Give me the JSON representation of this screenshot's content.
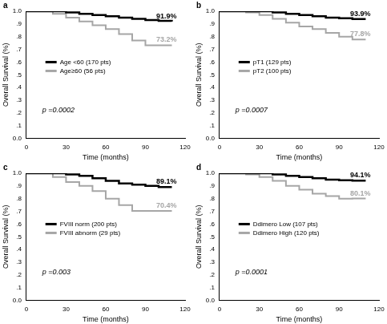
{
  "chart_data": [
    {
      "type": "line",
      "title": "a",
      "line_style": "step",
      "grid": false,
      "legend": "lower left",
      "x_label": "Time (months)",
      "y_label": "Overall Survival (%)",
      "x": [
        0,
        10,
        20,
        30,
        40,
        50,
        60,
        70,
        80,
        90,
        100,
        110
      ],
      "xlim": [
        0,
        120
      ],
      "xticks": [
        0,
        30,
        60,
        90,
        120
      ],
      "ylim": [
        0,
        1
      ],
      "yticks": [
        {
          "value": 0,
          "label": "0.0"
        },
        {
          "value": 0.1,
          "label": ".1"
        },
        {
          "value": 0.2,
          "label": ".2"
        },
        {
          "value": 0.3,
          "label": ".3"
        },
        {
          "value": 0.4,
          "label": ".4"
        },
        {
          "value": 0.5,
          "label": ".5"
        },
        {
          "value": 0.6,
          "label": ".6"
        },
        {
          "value": 0.7,
          "label": ".7"
        },
        {
          "value": 0.8,
          "label": ".8"
        },
        {
          "value": 0.9,
          "label": ".9"
        },
        {
          "value": 1,
          "label": "1.0"
        }
      ],
      "annotations": [
        "p =0.0002"
      ],
      "series": [
        {
          "name": "Age <60 (170 pts)",
          "color": "#000000",
          "end_label": "91.9%",
          "values": [
            1,
            1,
            1,
            0.99,
            0.98,
            0.97,
            0.96,
            0.95,
            0.94,
            0.93,
            0.925,
            0.919
          ]
        },
        {
          "name": "Age≥60 (56 pts)",
          "color": "#a6a6a6",
          "end_label": "73.2%",
          "values": [
            1,
            1,
            0.98,
            0.95,
            0.92,
            0.89,
            0.86,
            0.82,
            0.77,
            0.732,
            0.732,
            0.732
          ]
        }
      ]
    },
    {
      "type": "line",
      "title": "b",
      "line_style": "step",
      "grid": false,
      "legend": "lower left",
      "x_label": "Time (months)",
      "y_label": "Overall Survival (%)",
      "x": [
        0,
        10,
        20,
        30,
        40,
        50,
        60,
        70,
        80,
        90,
        100,
        110
      ],
      "xlim": [
        0,
        120
      ],
      "xticks": [
        0,
        30,
        60,
        90,
        120
      ],
      "ylim": [
        0,
        1
      ],
      "yticks": [
        {
          "value": 0,
          "label": "0.0"
        },
        {
          "value": 0.1,
          "label": ".1"
        },
        {
          "value": 0.2,
          "label": ".2"
        },
        {
          "value": 0.3,
          "label": ".3"
        },
        {
          "value": 0.4,
          "label": ".4"
        },
        {
          "value": 0.5,
          "label": ".5"
        },
        {
          "value": 0.6,
          "label": ".6"
        },
        {
          "value": 0.7,
          "label": ".7"
        },
        {
          "value": 0.8,
          "label": ".8"
        },
        {
          "value": 0.9,
          "label": ".9"
        },
        {
          "value": 1,
          "label": "1.0"
        }
      ],
      "annotations": [
        "p =0.0007"
      ],
      "series": [
        {
          "name": "pT1 (129 pts)",
          "color": "#000000",
          "end_label": "93.9%",
          "values": [
            1,
            1,
            1,
            1,
            0.99,
            0.98,
            0.97,
            0.96,
            0.95,
            0.945,
            0.939,
            0.939
          ]
        },
        {
          "name": "pT2 (100 pts)",
          "color": "#a6a6a6",
          "end_label": "77.8%",
          "values": [
            1,
            1,
            0.99,
            0.97,
            0.94,
            0.91,
            0.88,
            0.86,
            0.83,
            0.8,
            0.778,
            0.778
          ]
        }
      ]
    },
    {
      "type": "line",
      "title": "c",
      "line_style": "step",
      "grid": false,
      "legend": "lower left",
      "x_label": "Time (months)",
      "y_label": "Overall Survival (%)",
      "x": [
        0,
        10,
        20,
        30,
        40,
        50,
        60,
        70,
        80,
        90,
        100,
        110
      ],
      "xlim": [
        0,
        120
      ],
      "xticks": [
        0,
        30,
        60,
        90,
        120
      ],
      "ylim": [
        0,
        1
      ],
      "yticks": [
        {
          "value": 0,
          "label": "0.0"
        },
        {
          "value": 0.1,
          "label": ".1"
        },
        {
          "value": 0.2,
          "label": ".2"
        },
        {
          "value": 0.3,
          "label": ".3"
        },
        {
          "value": 0.4,
          "label": ".4"
        },
        {
          "value": 0.5,
          "label": ".5"
        },
        {
          "value": 0.6,
          "label": ".6"
        },
        {
          "value": 0.7,
          "label": ".7"
        },
        {
          "value": 0.8,
          "label": ".8"
        },
        {
          "value": 0.9,
          "label": ".9"
        },
        {
          "value": 1,
          "label": "1.0"
        }
      ],
      "annotations": [
        "p =0.003"
      ],
      "series": [
        {
          "name": "FVIII norm (200 pts)",
          "color": "#000000",
          "end_label": "89.1%",
          "values": [
            1,
            1,
            1,
            0.99,
            0.98,
            0.96,
            0.94,
            0.92,
            0.91,
            0.9,
            0.891,
            0.891
          ]
        },
        {
          "name": "FVIII abnorm (29 pts)",
          "color": "#a6a6a6",
          "end_label": "70.4%",
          "values": [
            1,
            1,
            0.97,
            0.93,
            0.9,
            0.86,
            0.8,
            0.75,
            0.704,
            0.704,
            0.704,
            0.704
          ]
        }
      ]
    },
    {
      "type": "line",
      "title": "d",
      "line_style": "step",
      "grid": false,
      "legend": "lower left",
      "x_label": "Time (months)",
      "y_label": "Overall Survival (%)",
      "x": [
        0,
        10,
        20,
        30,
        40,
        50,
        60,
        70,
        80,
        90,
        100,
        110
      ],
      "xlim": [
        0,
        120
      ],
      "xticks": [
        0,
        30,
        60,
        90,
        120
      ],
      "ylim": [
        0,
        1
      ],
      "yticks": [
        {
          "value": 0,
          "label": "0.0"
        },
        {
          "value": 0.1,
          "label": ".1"
        },
        {
          "value": 0.2,
          "label": ".2"
        },
        {
          "value": 0.3,
          "label": ".3"
        },
        {
          "value": 0.4,
          "label": ".4"
        },
        {
          "value": 0.5,
          "label": ".5"
        },
        {
          "value": 0.6,
          "label": ".6"
        },
        {
          "value": 0.7,
          "label": ".7"
        },
        {
          "value": 0.8,
          "label": ".8"
        },
        {
          "value": 0.9,
          "label": ".9"
        },
        {
          "value": 1,
          "label": "1.0"
        }
      ],
      "annotations": [
        "p =0.0001"
      ],
      "series": [
        {
          "name": "Ddimero Low (107 pts)",
          "color": "#000000",
          "end_label": "94.1%",
          "values": [
            1,
            1,
            1,
            1,
            0.99,
            0.98,
            0.97,
            0.96,
            0.95,
            0.945,
            0.941,
            0.941
          ]
        },
        {
          "name": "Ddimero High (120 pts)",
          "color": "#a6a6a6",
          "end_label": "80.1%",
          "values": [
            1,
            1,
            0.99,
            0.97,
            0.94,
            0.9,
            0.87,
            0.84,
            0.82,
            0.8,
            0.801,
            0.801
          ]
        }
      ]
    }
  ]
}
